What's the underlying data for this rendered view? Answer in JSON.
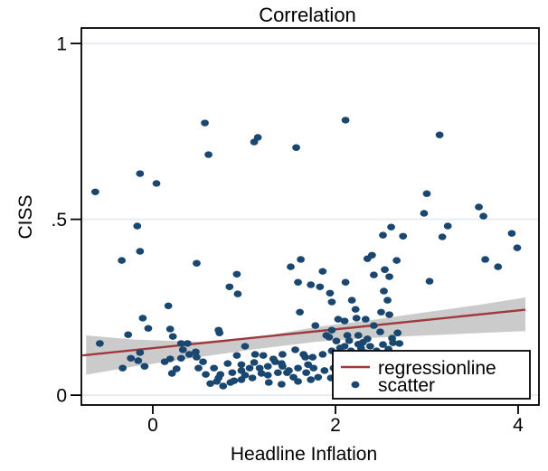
{
  "chart_data": {
    "type": "scatter",
    "title": "Correlation",
    "xlabel": "Headline Inflation",
    "ylabel": "CISS",
    "xlim": [
      -0.782,
      4.228
    ],
    "ylim": [
      -0.028,
      1.044
    ],
    "x_ticks": [
      0,
      2,
      4
    ],
    "x_tick_labels": [
      "0",
      "2",
      "4"
    ],
    "y_ticks": [
      0,
      0.5,
      1
    ],
    "y_tick_labels": [
      "0",
      ".5",
      "1"
    ],
    "grid": "horizontal",
    "legend_position": "inside-bottom-right",
    "legend": [
      {
        "label": "regressionline",
        "type": "line"
      },
      {
        "label": "scatter",
        "type": "marker"
      }
    ],
    "colors": {
      "scatter": "#1a476f",
      "regression": "#9e3a3e",
      "ci_band": "#cbcbcb",
      "grid": "#e8edf3",
      "frame": "#000000",
      "background": "#ffffff"
    },
    "regression_line": {
      "x": [
        -0.77,
        4.08
      ],
      "y": [
        0.113,
        0.243
      ],
      "equation": "y = 0.134 + 0.027x"
    },
    "ci_band": {
      "x": [
        -0.73,
        -0.2,
        0.5,
        1.1,
        1.8,
        2.4,
        3.0,
        3.6,
        4.08
      ],
      "top": [
        0.17,
        0.158,
        0.152,
        0.163,
        0.194,
        0.214,
        0.236,
        0.258,
        0.278
      ],
      "bottom": [
        0.058,
        0.082,
        0.108,
        0.13,
        0.152,
        0.163,
        0.17,
        0.177,
        0.182
      ]
    },
    "points": [
      [
        -0.63,
        0.578
      ],
      [
        -0.14,
        0.63
      ],
      [
        0.04,
        0.602
      ],
      [
        0.57,
        0.774
      ],
      [
        0.61,
        0.684
      ],
      [
        1.11,
        0.72
      ],
      [
        1.15,
        0.733
      ],
      [
        1.57,
        0.704
      ],
      [
        2.11,
        0.782
      ],
      [
        3.14,
        0.74
      ],
      [
        3.0,
        0.573
      ],
      [
        2.97,
        0.517
      ],
      [
        3.57,
        0.535
      ],
      [
        3.62,
        0.509
      ],
      [
        -0.17,
        0.481
      ],
      [
        -0.14,
        0.409
      ],
      [
        -0.34,
        0.383
      ],
      [
        0.48,
        0.375
      ],
      [
        0.92,
        0.344
      ],
      [
        0.84,
        0.308
      ],
      [
        0.93,
        0.288
      ],
      [
        2.61,
        0.478
      ],
      [
        2.52,
        0.455
      ],
      [
        2.74,
        0.452
      ],
      [
        3.23,
        0.481
      ],
      [
        3.17,
        0.45
      ],
      [
        3.93,
        0.46
      ],
      [
        3.99,
        0.419
      ],
      [
        3.64,
        0.386
      ],
      [
        3.78,
        0.365
      ],
      [
        2.35,
        0.388
      ],
      [
        2.4,
        0.398
      ],
      [
        2.67,
        0.383
      ],
      [
        2.54,
        0.357
      ],
      [
        2.42,
        0.342
      ],
      [
        2.59,
        0.337
      ],
      [
        1.86,
        0.352
      ],
      [
        1.83,
        0.308
      ],
      [
        2.11,
        0.321
      ],
      [
        2.53,
        0.296
      ],
      [
        1.94,
        0.29
      ],
      [
        1.96,
        0.265
      ],
      [
        3.03,
        0.324
      ],
      [
        1.73,
        0.314
      ],
      [
        2.18,
        0.27
      ],
      [
        2.22,
        0.244
      ],
      [
        2.57,
        0.27
      ],
      [
        2.59,
        0.229
      ],
      [
        2.5,
        0.236
      ],
      [
        1.62,
        0.386
      ],
      [
        1.51,
        0.365
      ],
      [
        1.59,
        0.321
      ],
      [
        1.61,
        0.236
      ],
      [
        0.17,
        0.254
      ],
      [
        -0.11,
        0.219
      ],
      [
        -0.05,
        0.19
      ],
      [
        0.19,
        0.188
      ],
      [
        -0.27,
        0.172
      ],
      [
        -0.58,
        0.147
      ],
      [
        0.22,
        0.167
      ],
      [
        0.73,
        0.177
      ],
      [
        2.03,
        0.216
      ],
      [
        2.1,
        0.211
      ],
      [
        2.23,
        0.219
      ],
      [
        2.33,
        0.216
      ],
      [
        2.42,
        0.198
      ],
      [
        2.49,
        0.18
      ],
      [
        2.68,
        0.177
      ],
      [
        1.96,
        0.185
      ],
      [
        1.9,
        0.17
      ],
      [
        2.13,
        0.17
      ],
      [
        2.25,
        0.17
      ],
      [
        0.72,
        0.185
      ],
      [
        1.78,
        0.198
      ],
      [
        1.93,
        0.165
      ],
      [
        2.01,
        0.154
      ],
      [
        -0.33,
        0.077
      ],
      [
        -0.24,
        0.105
      ],
      [
        -0.16,
        0.098
      ],
      [
        -0.09,
        0.082
      ],
      [
        -0.14,
        0.121
      ],
      [
        0.13,
        0.095
      ],
      [
        0.19,
        0.103
      ],
      [
        0.26,
        0.075
      ],
      [
        0.21,
        0.062
      ],
      [
        0.31,
        0.105
      ],
      [
        0.33,
        0.129
      ],
      [
        0.38,
        0.147
      ],
      [
        0.31,
        0.147
      ],
      [
        0.4,
        0.116
      ],
      [
        0.47,
        0.123
      ],
      [
        0.48,
        0.108
      ],
      [
        0.5,
        0.077
      ],
      [
        0.55,
        0.095
      ],
      [
        0.58,
        0.059
      ],
      [
        0.63,
        0.033
      ],
      [
        0.72,
        0.049
      ],
      [
        0.77,
        0.026
      ],
      [
        0.89,
        0.041
      ],
      [
        1.01,
        0.057
      ],
      [
        0.97,
        0.087
      ],
      [
        1.11,
        0.093
      ],
      [
        1.17,
        0.077
      ],
      [
        1.26,
        0.057
      ],
      [
        1.32,
        0.103
      ],
      [
        1.21,
        0.113
      ],
      [
        1.41,
        0.09
      ],
      [
        1.47,
        0.064
      ],
      [
        1.54,
        0.051
      ],
      [
        1.59,
        0.077
      ],
      [
        1.67,
        0.108
      ],
      [
        1.7,
        0.087
      ],
      [
        1.01,
        0.139
      ],
      [
        0.92,
        0.113
      ],
      [
        1.12,
        0.116
      ],
      [
        0.82,
        0.09
      ],
      [
        0.67,
        0.077
      ],
      [
        0.74,
        0.059
      ],
      [
        0.87,
        0.064
      ],
      [
        0.97,
        0.07
      ],
      [
        1.06,
        0.077
      ],
      [
        0.7,
        0.039
      ],
      [
        0.85,
        0.036
      ],
      [
        0.97,
        0.044
      ],
      [
        1.09,
        0.049
      ],
      [
        1.19,
        0.062
      ],
      [
        1.26,
        0.082
      ],
      [
        1.34,
        0.095
      ],
      [
        1.42,
        0.082
      ],
      [
        1.37,
        0.064
      ],
      [
        1.49,
        0.07
      ],
      [
        1.68,
        0.064
      ],
      [
        1.76,
        0.077
      ],
      [
        1.88,
        0.07
      ],
      [
        1.98,
        0.077
      ],
      [
        1.59,
        0.039
      ],
      [
        1.73,
        0.044
      ],
      [
        1.81,
        0.051
      ],
      [
        1.95,
        0.049
      ],
      [
        2.05,
        0.057
      ],
      [
        1.27,
        0.036
      ],
      [
        1.41,
        0.031
      ],
      [
        1.42,
        0.116
      ],
      [
        1.56,
        0.129
      ],
      [
        1.65,
        0.116
      ],
      [
        1.75,
        0.108
      ],
      [
        1.86,
        0.116
      ],
      [
        1.96,
        0.126
      ],
      [
        2.05,
        0.134
      ],
      [
        2.1,
        0.139
      ],
      [
        2.17,
        0.126
      ],
      [
        2.22,
        0.113
      ],
      [
        2.28,
        0.134
      ],
      [
        2.33,
        0.121
      ],
      [
        2.38,
        0.139
      ],
      [
        2.45,
        0.126
      ],
      [
        2.52,
        0.144
      ],
      [
        2.58,
        0.131
      ],
      [
        2.63,
        0.149
      ],
      [
        2.7,
        0.147
      ],
      [
        2.3,
        0.15
      ],
      [
        2.15,
        0.155
      ],
      [
        2.62,
        0.162
      ],
      [
        2.35,
        0.16
      ],
      [
        2.25,
        0.145
      ]
    ]
  }
}
